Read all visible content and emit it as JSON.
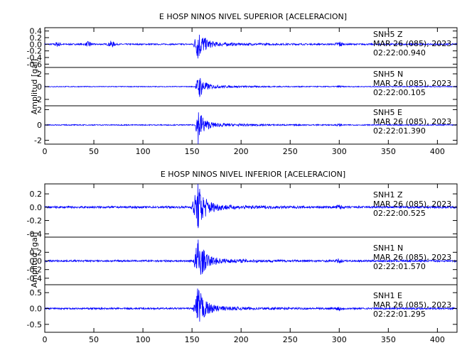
{
  "figure": {
    "ylabel": "Amplitud  [gal]",
    "xlabel": ""
  },
  "chart_data": [
    {
      "type": "line",
      "title": "E HOSP NINOS NIVEL SUPERIOR [ACELERACION]",
      "ylabel": "Amplitud  [gal]",
      "xlim": [
        0,
        420
      ],
      "xticks": [
        0,
        50,
        100,
        150,
        200,
        250,
        300,
        350,
        400
      ],
      "color": "#0000ff",
      "traces": [
        {
          "name": "SNH5   Z",
          "station": "SNH5   Z",
          "date": "MAR 26 (085), 2023",
          "time": "02:22:00.940",
          "ylim": [
            -0.7,
            0.5
          ],
          "yticks": [
            "0.4",
            "0.2",
            "0.0",
            "-0.2",
            "-0.4",
            "-0.6"
          ],
          "ytick_values": [
            0.4,
            0.2,
            0.0,
            -0.2,
            -0.4,
            -0.6
          ],
          "noise": 0.02,
          "peak": 0.45,
          "onset": 151,
          "peak_time": 156,
          "decay": 6,
          "minor_events": [
            [
              13,
              0.06
            ],
            [
              45,
              0.08
            ],
            [
              68,
              0.09
            ],
            [
              300,
              0.08
            ]
          ]
        },
        {
          "name": "SNH5   N",
          "station": "SNH5   N",
          "date": "MAR 26 (085), 2023",
          "time": "02:22:00.105",
          "ylim": [
            -3,
            3
          ],
          "yticks": [
            "2",
            "0",
            "-2"
          ],
          "ytick_values": [
            2,
            0,
            -2
          ],
          "noise": 0.06,
          "peak": 1.9,
          "onset": 153,
          "peak_time": 157,
          "decay": 5,
          "minor_events": [
            [
              300,
              0.1
            ]
          ]
        },
        {
          "name": "SNH5   E",
          "station": "SNH5   E",
          "date": "MAR 26 (085), 2023",
          "time": "02:22:01.390",
          "ylim": [
            -2.5,
            2.5
          ],
          "yticks": [
            "2",
            "0",
            "-2"
          ],
          "ytick_values": [
            2,
            0,
            -2
          ],
          "noise": 0.06,
          "peak": 2.3,
          "onset": 153,
          "peak_time": 156,
          "decay": 5,
          "minor_events": [
            [
              300,
              0.1
            ]
          ]
        }
      ]
    },
    {
      "type": "line",
      "title": "E HOSP NINOS NIVEL INFERIOR [ACELERACION]",
      "ylabel": "Amplitud  [gal]",
      "xlim": [
        0,
        420
      ],
      "xticks": [
        0,
        50,
        100,
        150,
        200,
        250,
        300,
        350,
        400
      ],
      "color": "#0000ff",
      "traces": [
        {
          "name": "SNH1   Z",
          "station": "SNH1   Z",
          "date": "MAR 26 (085), 2023",
          "time": "02:22:00.525",
          "ylim": [
            -0.45,
            0.35
          ],
          "yticks": [
            "0.2",
            "0.0",
            "-0.2",
            "-0.4"
          ],
          "ytick_values": [
            0.2,
            0.0,
            -0.2,
            -0.4
          ],
          "noise": 0.015,
          "peak": 0.32,
          "onset": 149,
          "peak_time": 156,
          "decay": 7,
          "minor_events": [
            [
              300,
              0.03
            ]
          ]
        },
        {
          "name": "SNH1   N",
          "station": "SNH1   N",
          "date": "MAR 26 (085), 2023",
          "time": "02:22:01.570",
          "ylim": [
            -0.55,
            0.55
          ],
          "yticks": [
            "0.2",
            "0.0",
            "-0.2",
            "-0.4"
          ],
          "ytick_values": [
            0.2,
            0.0,
            -0.2,
            -0.4
          ],
          "noise": 0.02,
          "peak": 0.5,
          "onset": 151,
          "peak_time": 156,
          "decay": 6,
          "minor_events": [
            [
              300,
              0.04
            ]
          ]
        },
        {
          "name": "SNH1   E",
          "station": "SNH1   E",
          "date": "MAR 26 (085), 2023",
          "time": "02:22:01.295",
          "ylim": [
            -0.75,
            0.75
          ],
          "yticks": [
            "0.5",
            "0.0",
            "-0.5"
          ],
          "ytick_values": [
            0.5,
            0.0,
            -0.5
          ],
          "noise": 0.025,
          "peak": 0.65,
          "onset": 151,
          "peak_time": 156,
          "decay": 6,
          "minor_events": [
            [
              300,
              0.05
            ]
          ]
        }
      ]
    }
  ]
}
